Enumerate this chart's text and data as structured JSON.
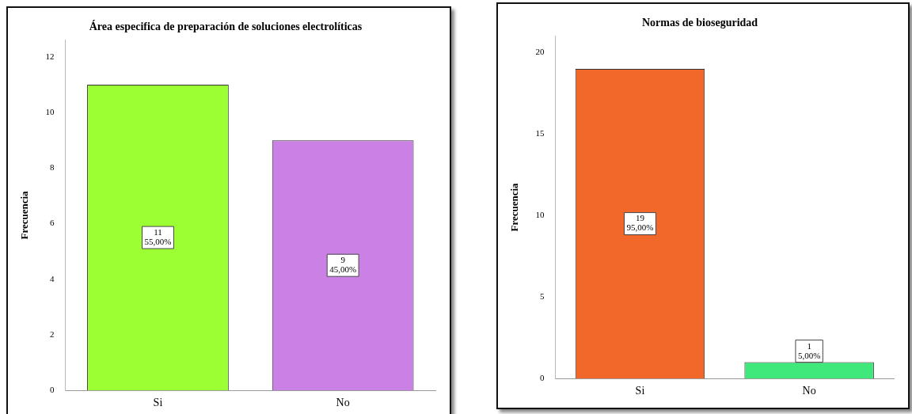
{
  "chart_data": [
    {
      "type": "bar",
      "title": "Área especifica de preparación de soluciones electrolíticas",
      "ylabel": "Frecuencia",
      "categories": [
        "Si",
        "No"
      ],
      "values": [
        11,
        9
      ],
      "colors": [
        "#9cff33",
        "#cb80e6"
      ],
      "value_labels": [
        "11\n55,00%",
        "9\n45,00%"
      ],
      "ylim": [
        0,
        12.6
      ],
      "yticks": [
        0,
        2,
        4,
        6,
        8,
        10,
        12
      ],
      "grid": false,
      "legend": false
    },
    {
      "type": "bar",
      "title": "Normas de bioseguridad",
      "ylabel": "Frecuencia",
      "categories": [
        "Si",
        "No"
      ],
      "values": [
        19,
        1
      ],
      "colors": [
        "#f2682b",
        "#40e87c"
      ],
      "value_labels": [
        "19\n95,00%",
        "1\n5,00%"
      ],
      "ylim": [
        0,
        21
      ],
      "yticks": [
        0,
        5,
        10,
        15,
        20
      ],
      "grid": false,
      "legend": false
    }
  ]
}
